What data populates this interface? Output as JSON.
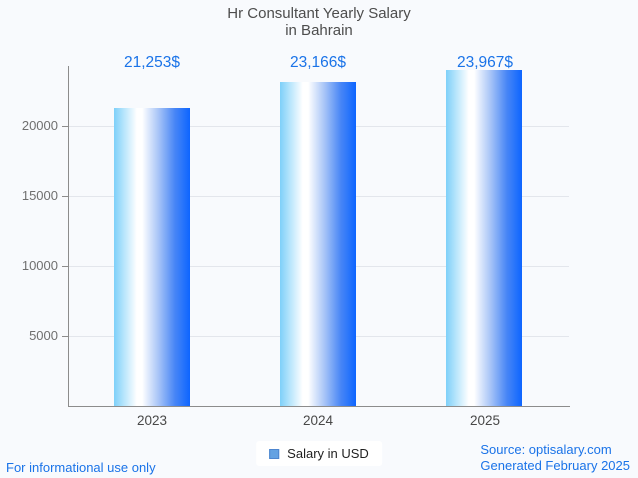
{
  "title": {
    "line1": "Hr Consultant Yearly Salary",
    "line2": "in Bahrain"
  },
  "chart_data": {
    "type": "bar",
    "categories": [
      "2023",
      "2024",
      "2025"
    ],
    "values": [
      21253,
      23166,
      23967
    ],
    "value_labels": [
      "21,253$",
      "23,166$",
      "23,967$"
    ],
    "series": [
      {
        "name": "Salary in USD",
        "values": [
          21253,
          23166,
          23967
        ]
      }
    ],
    "title": "Hr Consultant Yearly Salary in Bahrain",
    "xlabel": "",
    "ylabel": "",
    "y_ticks": [
      5000,
      10000,
      15000,
      20000
    ],
    "ylim": [
      0,
      24300
    ],
    "grid": true,
    "legend_position": "bottom",
    "colors": {
      "bar_gradient_left": "#7ed0f9",
      "bar_gradient_mid": "#ffffff",
      "bar_gradient_right": "#0d65ff",
      "value_label": "#1a73e8",
      "background": "#f8fafd"
    }
  },
  "legend": {
    "label": "Salary in USD",
    "marker_color": "#64a2e2"
  },
  "footer": {
    "left": "For informational use only",
    "source": "Source: optisalary.com",
    "generated": "Generated February 2025"
  }
}
